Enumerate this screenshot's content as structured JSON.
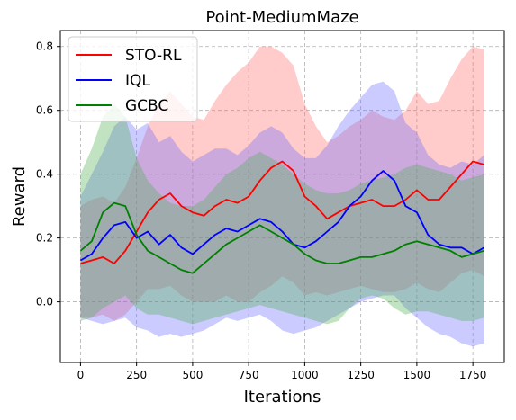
{
  "chart_data": {
    "type": "line",
    "title": "Point-MediumMaze",
    "xlabel": "Iterations",
    "ylabel": "Reward",
    "xlim": [
      -90,
      1890
    ],
    "ylim": [
      -0.19,
      0.85
    ],
    "xticks": [
      0,
      250,
      500,
      750,
      1000,
      1250,
      1500,
      1750
    ],
    "yticks": [
      0.0,
      0.2,
      0.4,
      0.6,
      0.8
    ],
    "xtick_labels": [
      "0",
      "250",
      "500",
      "750",
      "1000",
      "1250",
      "1500",
      "1750"
    ],
    "ytick_labels": [
      "0.0",
      "0.2",
      "0.4",
      "0.6",
      "0.8"
    ],
    "grid": true,
    "legend_position": "top-left",
    "x": [
      0,
      50,
      100,
      150,
      200,
      250,
      300,
      350,
      400,
      450,
      500,
      550,
      600,
      650,
      700,
      750,
      800,
      850,
      900,
      950,
      1000,
      1050,
      1100,
      1150,
      1200,
      1250,
      1300,
      1350,
      1400,
      1450,
      1500,
      1550,
      1600,
      1650,
      1700,
      1750,
      1800
    ],
    "series": [
      {
        "name": "STO-RL",
        "color": "#ff0000",
        "band_color": "#ff6b6b",
        "values": [
          0.12,
          0.13,
          0.14,
          0.12,
          0.16,
          0.22,
          0.28,
          0.32,
          0.34,
          0.3,
          0.28,
          0.27,
          0.3,
          0.32,
          0.31,
          0.33,
          0.38,
          0.42,
          0.44,
          0.41,
          0.33,
          0.3,
          0.26,
          0.28,
          0.3,
          0.31,
          0.32,
          0.3,
          0.3,
          0.32,
          0.35,
          0.32,
          0.32,
          0.36,
          0.4,
          0.44,
          0.43
        ],
        "upper": [
          0.3,
          0.32,
          0.33,
          0.31,
          0.36,
          0.45,
          0.55,
          0.62,
          0.66,
          0.62,
          0.58,
          0.57,
          0.63,
          0.68,
          0.72,
          0.75,
          0.8,
          0.8,
          0.78,
          0.74,
          0.62,
          0.55,
          0.5,
          0.52,
          0.55,
          0.57,
          0.6,
          0.58,
          0.57,
          0.6,
          0.66,
          0.62,
          0.63,
          0.7,
          0.76,
          0.8,
          0.79
        ],
        "lower": [
          -0.05,
          -0.05,
          -0.04,
          -0.06,
          -0.04,
          0.0,
          0.04,
          0.04,
          0.05,
          0.02,
          0.0,
          0.0,
          0.0,
          0.02,
          0.0,
          0.0,
          0.03,
          0.05,
          0.08,
          0.06,
          0.02,
          0.03,
          0.02,
          0.03,
          0.04,
          0.05,
          0.04,
          0.03,
          0.03,
          0.04,
          0.06,
          0.04,
          0.03,
          0.06,
          0.09,
          0.1,
          0.08
        ]
      },
      {
        "name": "IQL",
        "color": "#0000ff",
        "band_color": "#6b6bff",
        "values": [
          0.13,
          0.15,
          0.2,
          0.24,
          0.25,
          0.2,
          0.22,
          0.18,
          0.21,
          0.17,
          0.15,
          0.18,
          0.21,
          0.23,
          0.22,
          0.24,
          0.26,
          0.25,
          0.22,
          0.18,
          0.17,
          0.19,
          0.22,
          0.25,
          0.3,
          0.33,
          0.38,
          0.41,
          0.38,
          0.3,
          0.28,
          0.21,
          0.18,
          0.17,
          0.17,
          0.15,
          0.17
        ],
        "upper": [
          0.33,
          0.4,
          0.47,
          0.55,
          0.58,
          0.54,
          0.56,
          0.5,
          0.52,
          0.47,
          0.44,
          0.46,
          0.48,
          0.48,
          0.46,
          0.49,
          0.53,
          0.55,
          0.53,
          0.48,
          0.45,
          0.45,
          0.49,
          0.55,
          0.6,
          0.64,
          0.68,
          0.69,
          0.66,
          0.56,
          0.53,
          0.46,
          0.43,
          0.42,
          0.44,
          0.43,
          0.46
        ],
        "lower": [
          -0.05,
          -0.06,
          -0.07,
          -0.06,
          -0.05,
          -0.08,
          -0.09,
          -0.11,
          -0.1,
          -0.11,
          -0.1,
          -0.09,
          -0.07,
          -0.05,
          -0.06,
          -0.05,
          -0.04,
          -0.06,
          -0.09,
          -0.1,
          -0.09,
          -0.08,
          -0.06,
          -0.04,
          -0.02,
          0.0,
          0.01,
          0.02,
          0.02,
          -0.02,
          -0.05,
          -0.08,
          -0.1,
          -0.11,
          -0.13,
          -0.14,
          -0.13
        ]
      },
      {
        "name": "GCBC",
        "color": "#008000",
        "band_color": "#4caf50",
        "values": [
          0.16,
          0.19,
          0.28,
          0.31,
          0.3,
          0.21,
          0.16,
          0.14,
          0.12,
          0.1,
          0.09,
          0.12,
          0.15,
          0.18,
          0.2,
          0.22,
          0.24,
          0.22,
          0.2,
          0.18,
          0.15,
          0.13,
          0.12,
          0.12,
          0.13,
          0.14,
          0.14,
          0.15,
          0.16,
          0.18,
          0.19,
          0.18,
          0.17,
          0.16,
          0.14,
          0.15,
          0.16
        ],
        "upper": [
          0.4,
          0.48,
          0.58,
          0.62,
          0.58,
          0.45,
          0.38,
          0.34,
          0.31,
          0.3,
          0.3,
          0.32,
          0.36,
          0.4,
          0.42,
          0.45,
          0.47,
          0.45,
          0.43,
          0.4,
          0.37,
          0.35,
          0.34,
          0.34,
          0.35,
          0.37,
          0.38,
          0.39,
          0.4,
          0.42,
          0.43,
          0.42,
          0.41,
          0.4,
          0.38,
          0.39,
          0.4
        ],
        "lower": [
          -0.06,
          -0.05,
          -0.02,
          0.0,
          0.02,
          -0.02,
          -0.04,
          -0.04,
          -0.05,
          -0.06,
          -0.07,
          -0.06,
          -0.05,
          -0.04,
          -0.03,
          -0.02,
          -0.01,
          -0.02,
          -0.03,
          -0.04,
          -0.05,
          -0.06,
          -0.07,
          -0.06,
          -0.02,
          0.01,
          0.02,
          0.01,
          -0.02,
          -0.04,
          -0.03,
          -0.03,
          -0.04,
          -0.05,
          -0.06,
          -0.06,
          -0.05
        ]
      }
    ]
  }
}
